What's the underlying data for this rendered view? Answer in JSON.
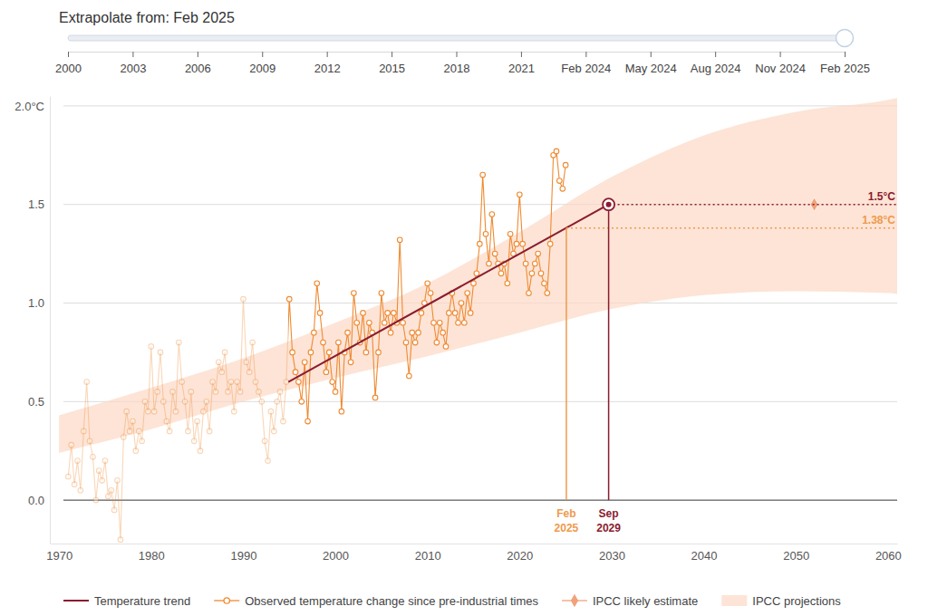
{
  "slider": {
    "title": "Extrapolate from: Feb 2025",
    "categories": [
      "2000",
      "2003",
      "2006",
      "2009",
      "2012",
      "2015",
      "2018",
      "2021",
      "Feb 2024",
      "May 2024",
      "Aug 2024",
      "Nov 2024",
      "Feb 2025"
    ],
    "value": "Feb 2025"
  },
  "chart_data": {
    "type": "line",
    "xlim": [
      1969,
      2061
    ],
    "xticks": [
      1970,
      1980,
      1990,
      2000,
      2010,
      2020,
      2030,
      2040,
      2050,
      2060
    ],
    "ylim": [
      -0.22,
      2.05
    ],
    "yticks": [
      {
        "value": 0,
        "label": "0.0"
      },
      0.5,
      {
        "value": 1,
        "label": "1.0"
      },
      1.5,
      {
        "value": 2,
        "label": "2.0°C"
      }
    ],
    "grid": true,
    "legend": "bottom",
    "series": [
      {
        "name": "Temperature trend",
        "type": "line",
        "color": "#8b1c2f",
        "line_style": "solid",
        "x": [
          1994.9,
          2029.67
        ],
        "values": [
          0.6,
          1.5
        ]
      },
      {
        "name": "Observed temperature change since pre-industrial times",
        "type": "line",
        "marker": "circle",
        "color": "#ee8a32",
        "x": [
          1971,
          1971.33,
          1971.67,
          1972,
          1972.33,
          1972.67,
          1973,
          1973.33,
          1973.67,
          1974,
          1974.33,
          1974.67,
          1975,
          1975.33,
          1975.67,
          1976,
          1976.33,
          1976.67,
          1977,
          1977.33,
          1977.67,
          1978,
          1978.33,
          1978.67,
          1979,
          1979.33,
          1979.67,
          1980,
          1980.33,
          1980.67,
          1981,
          1981.33,
          1981.67,
          1982,
          1982.33,
          1982.67,
          1983,
          1983.33,
          1983.67,
          1984,
          1984.33,
          1984.67,
          1985,
          1985.33,
          1985.67,
          1986,
          1986.33,
          1986.67,
          1987,
          1987.33,
          1987.67,
          1988,
          1988.33,
          1988.67,
          1989,
          1989.33,
          1989.67,
          1990,
          1990.33,
          1990.67,
          1991,
          1991.33,
          1991.67,
          1992,
          1992.33,
          1992.67,
          1993,
          1993.33,
          1993.67,
          1994,
          1994.33,
          1994.67,
          1995,
          1995.33,
          1995.67,
          1996,
          1996.33,
          1996.67,
          1997,
          1997.33,
          1997.67,
          1998,
          1998.33,
          1998.67,
          1999,
          1999.33,
          1999.67,
          2000,
          2000.33,
          2000.67,
          2001,
          2001.33,
          2001.67,
          2002,
          2002.33,
          2002.67,
          2003,
          2003.33,
          2003.67,
          2004,
          2004.33,
          2004.67,
          2005,
          2005.33,
          2005.67,
          2006,
          2006.33,
          2006.67,
          2007,
          2007.33,
          2007.67,
          2008,
          2008.33,
          2008.67,
          2009,
          2009.33,
          2009.67,
          2010,
          2010.33,
          2010.67,
          2011,
          2011.33,
          2011.67,
          2012,
          2012.33,
          2012.67,
          2013,
          2013.33,
          2013.67,
          2014,
          2014.33,
          2014.67,
          2015,
          2015.33,
          2015.67,
          2016,
          2016.33,
          2016.67,
          2017,
          2017.33,
          2017.67,
          2018,
          2018.33,
          2018.67,
          2019,
          2019.33,
          2019.67,
          2020,
          2020.33,
          2020.67,
          2021,
          2021.33,
          2021.67,
          2022,
          2022.33,
          2022.67,
          2023,
          2023.33,
          2023.67,
          2024,
          2024.33,
          2024.67,
          2025
        ],
        "values": [
          0.12,
          0.28,
          0.08,
          0.2,
          0.05,
          0.35,
          0.6,
          0.3,
          0.22,
          0.0,
          0.15,
          0.1,
          0.2,
          0.02,
          0.05,
          -0.05,
          0.1,
          -0.2,
          0.32,
          0.45,
          0.35,
          0.4,
          0.25,
          0.35,
          0.3,
          0.5,
          0.45,
          0.78,
          0.45,
          0.55,
          0.75,
          0.5,
          0.4,
          0.35,
          0.55,
          0.45,
          0.8,
          0.6,
          0.5,
          0.35,
          0.55,
          0.3,
          0.4,
          0.25,
          0.45,
          0.5,
          0.35,
          0.6,
          0.55,
          0.7,
          0.65,
          0.75,
          0.55,
          0.6,
          0.45,
          0.6,
          0.55,
          1.02,
          0.7,
          0.65,
          0.8,
          0.6,
          0.55,
          0.5,
          0.3,
          0.2,
          0.45,
          0.35,
          0.5,
          0.55,
          0.4,
          0.6,
          1.02,
          0.75,
          0.65,
          0.6,
          0.5,
          0.7,
          0.4,
          0.75,
          0.85,
          1.1,
          0.95,
          0.8,
          0.65,
          0.75,
          0.6,
          0.55,
          0.8,
          0.45,
          0.75,
          0.85,
          0.7,
          1.05,
          0.9,
          0.8,
          0.95,
          0.75,
          0.9,
          0.85,
          0.52,
          0.75,
          1.05,
          0.9,
          0.95,
          0.85,
          0.95,
          0.9,
          1.32,
          0.9,
          0.8,
          0.63,
          0.85,
          0.8,
          0.85,
          0.95,
          1.0,
          1.1,
          1.05,
          0.9,
          0.8,
          0.9,
          0.85,
          0.78,
          0.95,
          1.05,
          0.95,
          0.9,
          1.0,
          0.9,
          1.05,
          0.95,
          1.1,
          1.15,
          1.3,
          1.65,
          1.35,
          1.2,
          1.45,
          1.25,
          1.2,
          1.15,
          1.2,
          1.1,
          1.35,
          1.25,
          1.3,
          1.55,
          1.3,
          1.2,
          1.05,
          1.15,
          1.2,
          1.25,
          1.15,
          1.1,
          1.05,
          1.3,
          1.75,
          1.77,
          1.62,
          1.58,
          1.7
        ]
      },
      {
        "name": "IPCC likely estimate",
        "type": "scatter",
        "marker": "diamond",
        "color": "#f2a27a",
        "x": [
          2052
        ],
        "values": [
          1.5
        ]
      },
      {
        "name": "IPCC projections",
        "type": "area",
        "color": "#fcd8c5",
        "x": [
          1970,
          1980,
          1990,
          2000,
          2010,
          2020,
          2030,
          2040,
          2050,
          2060,
          2062
        ],
        "lower": [
          0.24,
          0.36,
          0.5,
          0.62,
          0.73,
          0.85,
          0.97,
          1.04,
          1.06,
          1.05,
          1.04
        ],
        "upper": [
          0.43,
          0.57,
          0.72,
          0.9,
          1.1,
          1.36,
          1.64,
          1.85,
          1.97,
          2.03,
          2.05
        ]
      }
    ],
    "annotations": [
      {
        "label": "Feb 2025",
        "x": 2025.08,
        "y": 1.38,
        "value_label": "1.38°C",
        "color": "#ee9a4c",
        "line_style": "dotted"
      },
      {
        "label": "Sep 2029",
        "x": 2029.67,
        "y": 1.5,
        "value_label": "1.5°C",
        "color": "#8b1c2f",
        "marker": "circle",
        "line_style": "dotted"
      }
    ]
  }
}
